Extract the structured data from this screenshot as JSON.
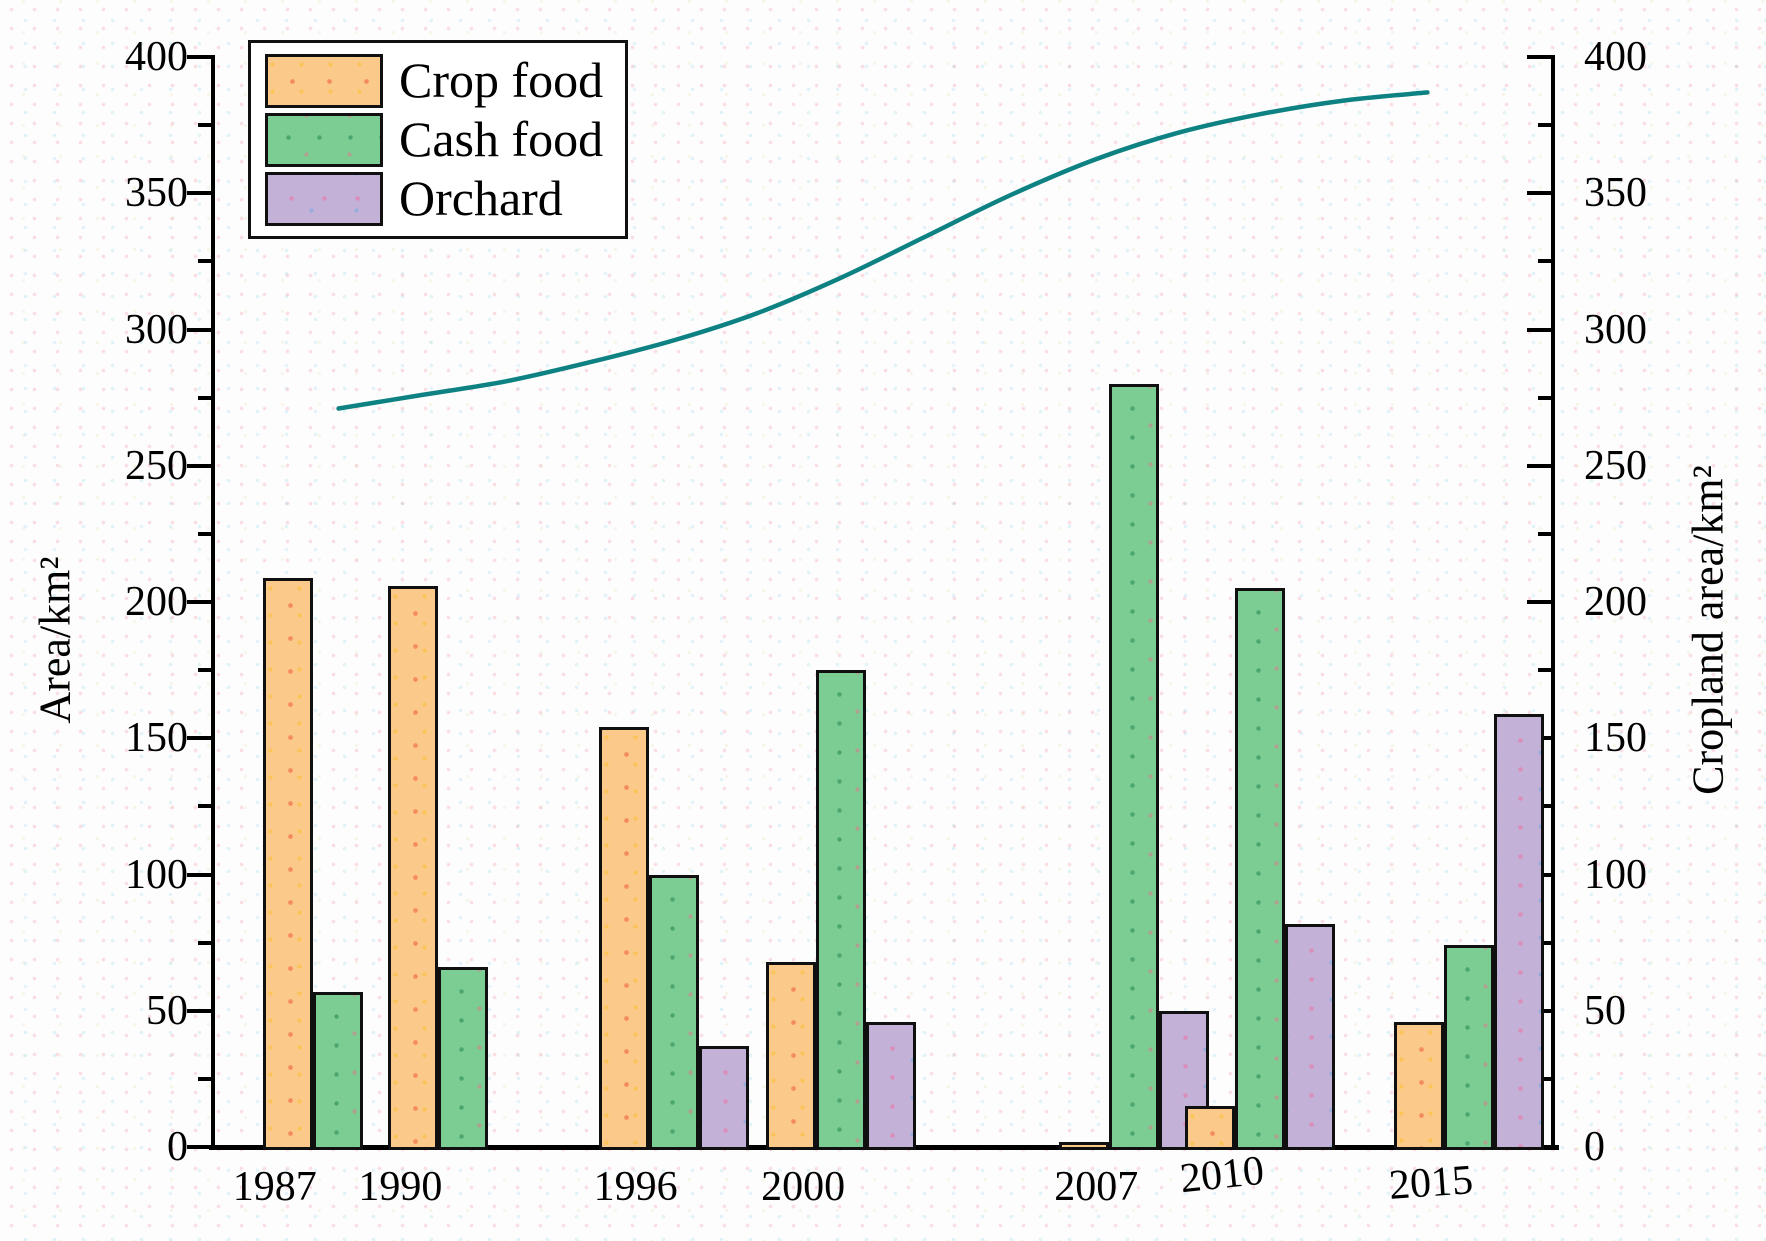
{
  "chart_data": {
    "type": "bar+line",
    "title": "",
    "categories": [
      "1987",
      "1990",
      "1996",
      "2000",
      "2007",
      "2010",
      "2015"
    ],
    "bar_series": [
      {
        "name": "Crop food",
        "color": "#fbca8b",
        "pattern": "dotted",
        "values": [
          209,
          206,
          154,
          68,
          2,
          15,
          46
        ]
      },
      {
        "name": "Cash food",
        "color": "#7ccd94",
        "pattern": "dotted",
        "values": [
          57,
          66,
          100,
          175,
          280,
          205,
          74
        ]
      },
      {
        "name": "Orchard",
        "color": "#c4b1d7",
        "pattern": "dotted",
        "values": [
          null,
          null,
          37,
          46,
          50,
          82,
          159
        ]
      }
    ],
    "line_series": {
      "name": "Cropland area",
      "color": "#0e8282",
      "values_at_category_years": [
        272,
        276,
        296,
        319,
        366,
        379,
        388
      ],
      "points": [
        [
          1988,
          271
        ],
        [
          1990,
          276
        ],
        [
          1992,
          281
        ],
        [
          1994,
          288
        ],
        [
          1996,
          296
        ],
        [
          1998,
          306
        ],
        [
          2000,
          319
        ],
        [
          2002,
          334
        ],
        [
          2004,
          349
        ],
        [
          2006,
          362
        ],
        [
          2008,
          372
        ],
        [
          2010,
          379
        ],
        [
          2012,
          384
        ],
        [
          2014,
          387
        ]
      ]
    },
    "left_axis": {
      "label": "Area/km²",
      "min": 0,
      "max": 400,
      "major_ticks": [
        0,
        50,
        100,
        150,
        200,
        250,
        300,
        350,
        400
      ],
      "minor_step": 25
    },
    "right_axis": {
      "label": "Cropland area/km²",
      "min": 0,
      "max": 400,
      "major_ticks": [
        0,
        50,
        100,
        150,
        200,
        250,
        300,
        350,
        400
      ],
      "minor_step": 25
    },
    "x_axis": {
      "tick_labels": [
        "1987",
        "1990",
        "1996",
        "2000",
        "2007",
        "2010",
        "2015"
      ],
      "year_range_estimate": [
        1985,
        2017
      ]
    },
    "legend": {
      "position": "top-left",
      "items": [
        "Crop food",
        "Cash food",
        "Orchard"
      ]
    },
    "grid": "off"
  }
}
